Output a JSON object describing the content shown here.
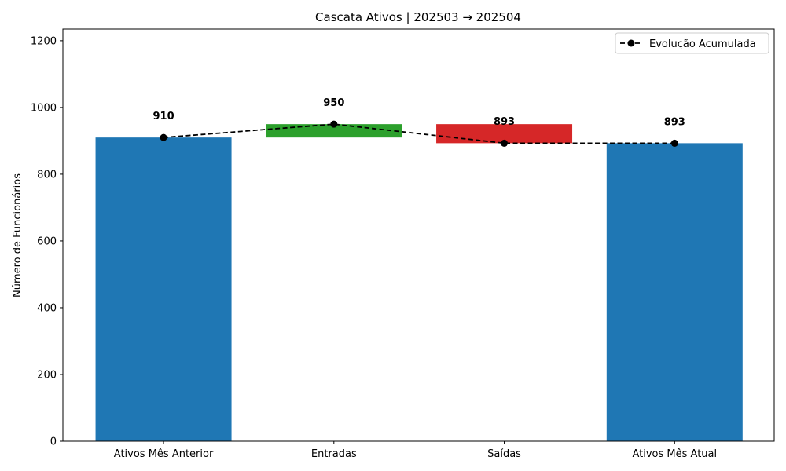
{
  "chart_data": {
    "type": "bar",
    "title": "Cascata Ativos | 202503 → 202504",
    "ylabel": "Número de Funcionários",
    "xlabel": "",
    "ylim": [
      0,
      1235
    ],
    "yticks": [
      0,
      200,
      400,
      600,
      800,
      1000,
      1200
    ],
    "categories": [
      "Ativos Mês Anterior",
      "Entradas",
      "Saídas",
      "Ativos Mês Atual"
    ],
    "bars": [
      {
        "base": 0,
        "top": 910,
        "color": "#1f77b4"
      },
      {
        "base": 910,
        "top": 950,
        "color": "#2ca02c"
      },
      {
        "base": 893,
        "top": 950,
        "color": "#d62728"
      },
      {
        "base": 0,
        "top": 893,
        "color": "#1f77b4"
      }
    ],
    "data_labels": [
      "910",
      "950",
      "893",
      "893"
    ],
    "data_label_values": [
      910,
      950,
      893,
      893
    ],
    "series": [
      {
        "name": "Evolução Acumulada",
        "values": [
          910,
          950,
          893,
          893
        ],
        "color": "#000000",
        "linestyle": "dashed",
        "marker": "circle"
      }
    ],
    "legend": {
      "placement": "top-right",
      "entries": [
        "Evolução Acumulada"
      ]
    },
    "grid": false
  }
}
